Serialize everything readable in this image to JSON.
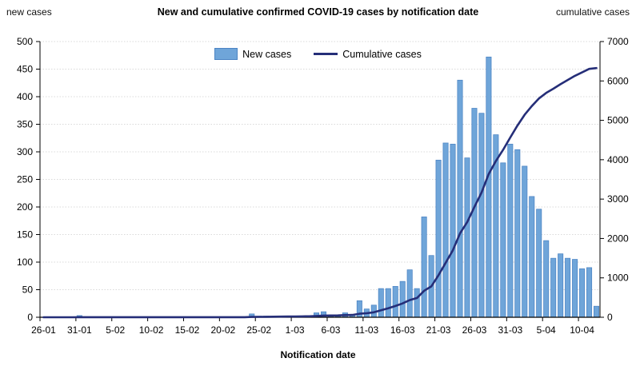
{
  "header": {
    "left_label": "new cases",
    "title": "New and cumulative confirmed COVID-19 cases by notification date",
    "right_label": "cumulative cases"
  },
  "legend": {
    "new_cases": "New cases",
    "cumulative": "Cumulative cases"
  },
  "x_axis_title": "Notification date",
  "colors": {
    "bar_fill": "#6FA5D9",
    "bar_stroke": "#4C84C4",
    "line": "#252E78",
    "grid": "#D9D9D9",
    "axis": "#000000"
  },
  "chart_data": {
    "type": "bar",
    "title": "New and cumulative confirmed COVID-19 cases by notification date",
    "xlabel": "Notification date",
    "ylabel_left": "new cases",
    "ylabel_right": "cumulative cases",
    "left_axis": {
      "min": 0,
      "max": 500,
      "step": 50,
      "ticks": [
        0,
        50,
        100,
        150,
        200,
        250,
        300,
        350,
        400,
        450,
        500
      ]
    },
    "right_axis": {
      "min": 0,
      "max": 7000,
      "step": 1000,
      "ticks": [
        0,
        1000,
        2000,
        3000,
        4000,
        5000,
        6000,
        7000
      ]
    },
    "x_tick_labels": [
      "26-01",
      "31-01",
      "5-02",
      "10-02",
      "15-02",
      "20-02",
      "25-02",
      "1-03",
      "6-03",
      "11-03",
      "16-03",
      "21-03",
      "26-03",
      "31-03",
      "5-04",
      "10-04"
    ],
    "x_tick_every": 5,
    "grid": "dotted-horizontal",
    "legend_position": "top-center",
    "dates": [
      "26-01",
      "27-01",
      "28-01",
      "29-01",
      "30-01",
      "31-01",
      "1-02",
      "2-02",
      "3-02",
      "4-02",
      "5-02",
      "6-02",
      "7-02",
      "8-02",
      "9-02",
      "10-02",
      "11-02",
      "12-02",
      "13-02",
      "14-02",
      "15-02",
      "16-02",
      "17-02",
      "18-02",
      "19-02",
      "20-02",
      "21-02",
      "22-02",
      "23-02",
      "24-02",
      "25-02",
      "26-02",
      "27-02",
      "28-02",
      "29-02",
      "1-03",
      "2-03",
      "3-03",
      "4-03",
      "5-03",
      "6-03",
      "7-03",
      "8-03",
      "9-03",
      "10-03",
      "11-03",
      "12-03",
      "13-03",
      "14-03",
      "15-03",
      "16-03",
      "17-03",
      "18-03",
      "19-03",
      "20-03",
      "21-03",
      "22-03",
      "23-03",
      "24-03",
      "25-03",
      "26-03",
      "27-03",
      "28-03",
      "29-03",
      "30-03",
      "31-03",
      "1-04",
      "2-04",
      "3-04",
      "4-04",
      "5-04",
      "6-04",
      "7-04",
      "8-04",
      "9-04",
      "10-04",
      "11-04",
      "12-04"
    ],
    "series": [
      {
        "name": "New cases",
        "type": "bar",
        "axis": "left",
        "values": [
          0,
          0,
          0,
          0,
          0,
          3,
          0,
          0,
          0,
          0,
          0,
          0,
          0,
          0,
          0,
          0,
          0,
          0,
          0,
          0,
          0,
          0,
          0,
          0,
          0,
          0,
          0,
          0,
          0,
          6,
          2,
          2,
          1,
          2,
          2,
          2,
          2,
          3,
          8,
          10,
          2,
          2,
          8,
          4,
          30,
          15,
          22,
          52,
          52,
          56,
          65,
          86,
          52,
          182,
          112,
          285,
          316,
          314,
          430,
          289,
          379,
          370,
          472,
          331,
          280,
          314,
          304,
          274,
          219,
          196,
          139,
          107,
          115,
          107,
          105,
          88,
          90,
          20
        ]
      },
      {
        "name": "Cumulative cases",
        "type": "line",
        "axis": "right",
        "values": [
          0,
          0,
          0,
          0,
          0,
          3,
          3,
          3,
          3,
          3,
          3,
          3,
          3,
          3,
          3,
          3,
          3,
          3,
          3,
          3,
          3,
          3,
          3,
          3,
          3,
          3,
          3,
          3,
          3,
          9,
          11,
          13,
          14,
          16,
          18,
          20,
          22,
          25,
          33,
          43,
          45,
          47,
          55,
          59,
          89,
          104,
          126,
          178,
          230,
          286,
          351,
          437,
          489,
          671,
          783,
          1068,
          1384,
          1698,
          2128,
          2417,
          2796,
          3166,
          3638,
          3969,
          4249,
          4563,
          4867,
          5141,
          5360,
          5556,
          5695,
          5802,
          5917,
          6024,
          6129,
          6217,
          6307,
          6327
        ]
      }
    ]
  }
}
